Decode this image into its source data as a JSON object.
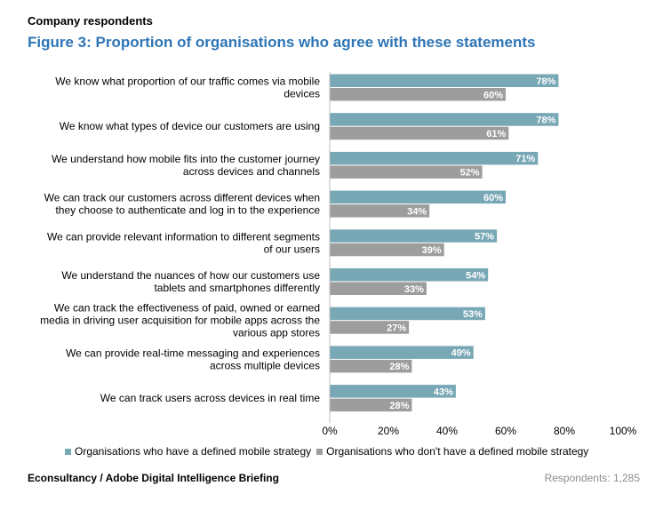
{
  "header": {
    "subtitle": "Company respondents",
    "title": "Figure 3: Proportion of organisations who agree with these statements"
  },
  "colors": {
    "series_1": "#78a7b5",
    "series_2": "#9d9d9d",
    "title": "#2e75b6",
    "axis": "#bfbfbf"
  },
  "chart_data": {
    "type": "bar",
    "orientation": "horizontal",
    "categories": [
      [
        "We know what proportion of our traffic comes via mobile",
        "devices"
      ],
      [
        "We know what types of device our customers are using"
      ],
      [
        "We understand how mobile fits into the customer journey",
        "across devices and channels"
      ],
      [
        "We can track our customers across different devices when",
        "they choose to authenticate and log in to the experience"
      ],
      [
        "We can provide relevant information to different segments",
        "of our users"
      ],
      [
        "We understand the nuances of how our customers use",
        "tablets and smartphones differently"
      ],
      [
        "We can track the effectiveness of paid, owned or earned",
        "media in driving user acquisition for mobile apps across the",
        "various app stores"
      ],
      [
        "We can provide real-time messaging and experiences",
        "across multiple devices"
      ],
      [
        "We can track users across devices in real time"
      ]
    ],
    "series": [
      {
        "name": "Organisations who have a defined mobile strategy",
        "values": [
          78,
          78,
          71,
          60,
          57,
          54,
          53,
          49,
          43
        ]
      },
      {
        "name": "Organisations who don't have a defined mobile strategy",
        "values": [
          60,
          61,
          52,
          34,
          39,
          33,
          27,
          28,
          28
        ]
      }
    ],
    "value_suffix": "%",
    "xlim": [
      0,
      100
    ],
    "xticks": [
      "0%",
      "20%",
      "40%",
      "60%",
      "80%",
      "100%"
    ],
    "legend_position": "bottom",
    "grid": false
  },
  "footer": {
    "source": "Econsultancy / Adobe Digital Intelligence Briefing",
    "respondents": "Respondents: 1,285"
  }
}
